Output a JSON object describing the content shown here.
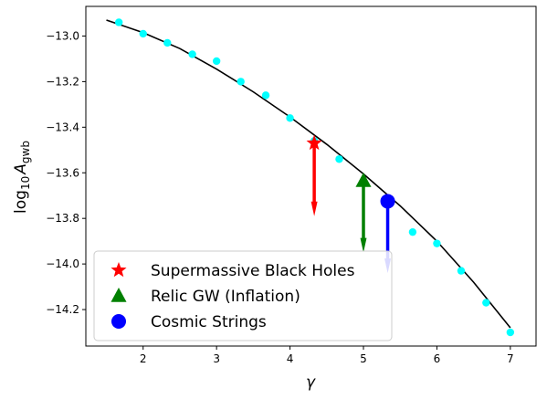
{
  "chart_data": {
    "type": "scatter",
    "xlabel": "γ",
    "ylabel_base": "log",
    "ylabel_sub": "10",
    "ylabel_var": "A",
    "ylabel_var_sub": "gwb",
    "xlim": [
      1.22,
      7.35
    ],
    "ylim": [
      -14.36,
      -12.87
    ],
    "x_ticks": [
      2,
      3,
      4,
      5,
      6,
      7
    ],
    "y_ticks": [
      -13.0,
      -13.2,
      -13.4,
      -13.6,
      -13.8,
      -14.0,
      -14.2
    ],
    "x_tick_labels": [
      "2",
      "3",
      "4",
      "5",
      "6",
      "7"
    ],
    "y_tick_labels": [
      "−13.0",
      "−13.2",
      "−13.4",
      "−13.6",
      "−13.8",
      "−14.0",
      "−14.2"
    ],
    "grid": false,
    "legend_position": "bottom-left",
    "fit_curve": {
      "color": "#000000",
      "x": [
        1.5,
        2.0,
        2.5,
        3.0,
        3.5,
        4.0,
        4.5,
        5.0,
        5.5,
        6.0,
        6.5,
        7.0
      ],
      "y": [
        -12.93,
        -12.985,
        -13.055,
        -13.145,
        -13.245,
        -13.355,
        -13.475,
        -13.605,
        -13.745,
        -13.9,
        -14.08,
        -14.28
      ]
    },
    "scatter_points": {
      "color": "#00ffff",
      "x": [
        1.67,
        2.0,
        2.33,
        2.67,
        3.0,
        3.33,
        3.67,
        4.0,
        4.33,
        4.67,
        5.0,
        5.33,
        5.67,
        6.0,
        6.33,
        6.67,
        7.0
      ],
      "y": [
        -12.94,
        -12.99,
        -13.03,
        -13.08,
        -13.11,
        -13.2,
        -13.26,
        -13.36,
        -13.46,
        -13.54,
        -13.64,
        -13.74,
        -13.86,
        -13.91,
        -14.03,
        -14.17,
        -14.3
      ]
    },
    "markers": [
      {
        "label": "Supermassive Black Holes",
        "shape": "star",
        "color": "#ff0000",
        "x": 4.33,
        "y": -13.47,
        "arrow_to": -13.79
      },
      {
        "label": "Relic GW (Inflation)",
        "shape": "triangle",
        "color": "#008000",
        "x": 5.0,
        "y": -13.635,
        "arrow_to": -13.95
      },
      {
        "label": "Cosmic Strings",
        "shape": "circle",
        "color": "#0000ff",
        "x": 5.33,
        "y": -13.725,
        "arrow_to": -14.04
      }
    ]
  }
}
